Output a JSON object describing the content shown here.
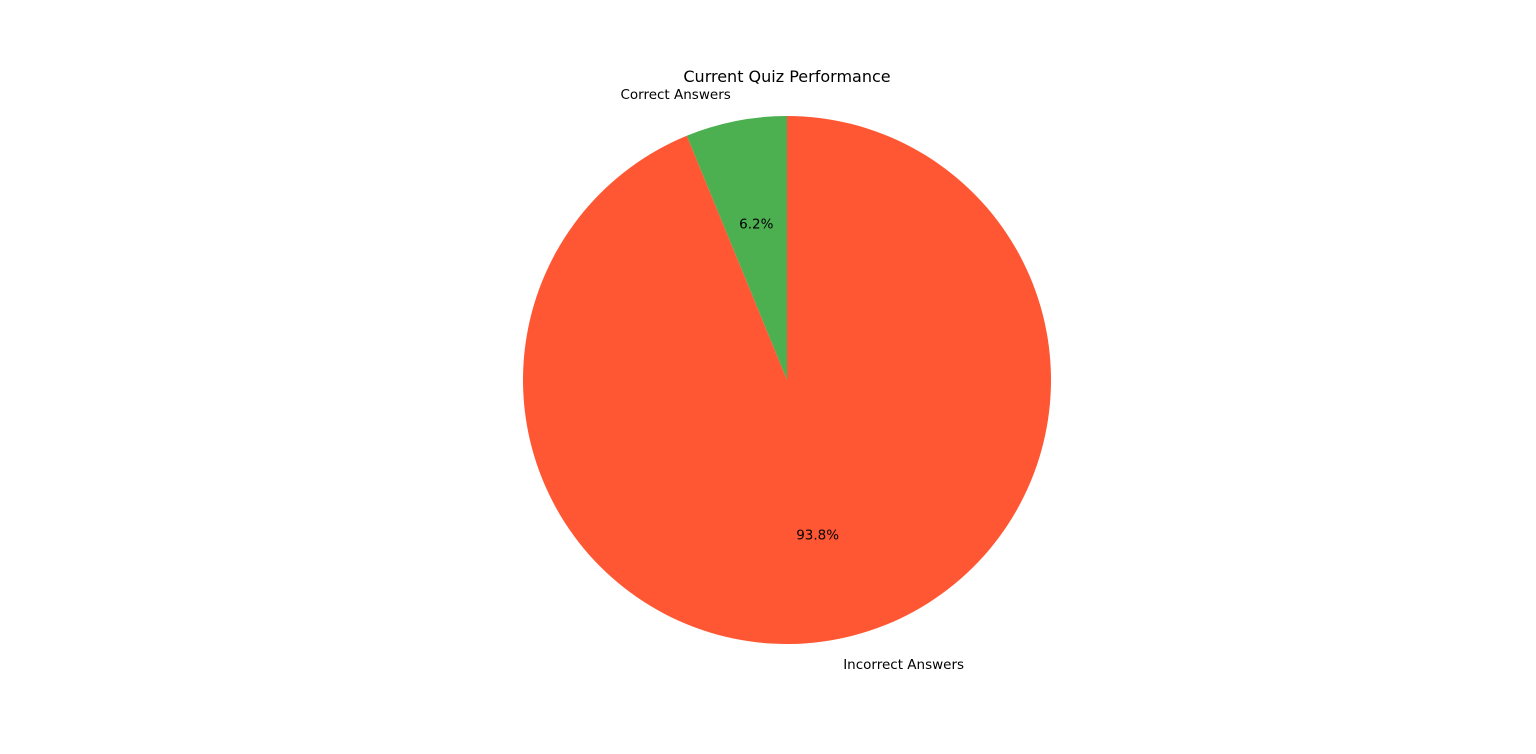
{
  "chart_data": {
    "type": "pie",
    "title": "Current Quiz Performance",
    "start_angle_deg": 90,
    "direction": "counterclockwise",
    "slices": [
      {
        "label": "Correct Answers",
        "value": 6.2,
        "pct_label": "6.2%",
        "color": "#4CAF50"
      },
      {
        "label": "Incorrect Answers",
        "value": 93.8,
        "pct_label": "93.8%",
        "color": "#FF5733"
      }
    ]
  }
}
